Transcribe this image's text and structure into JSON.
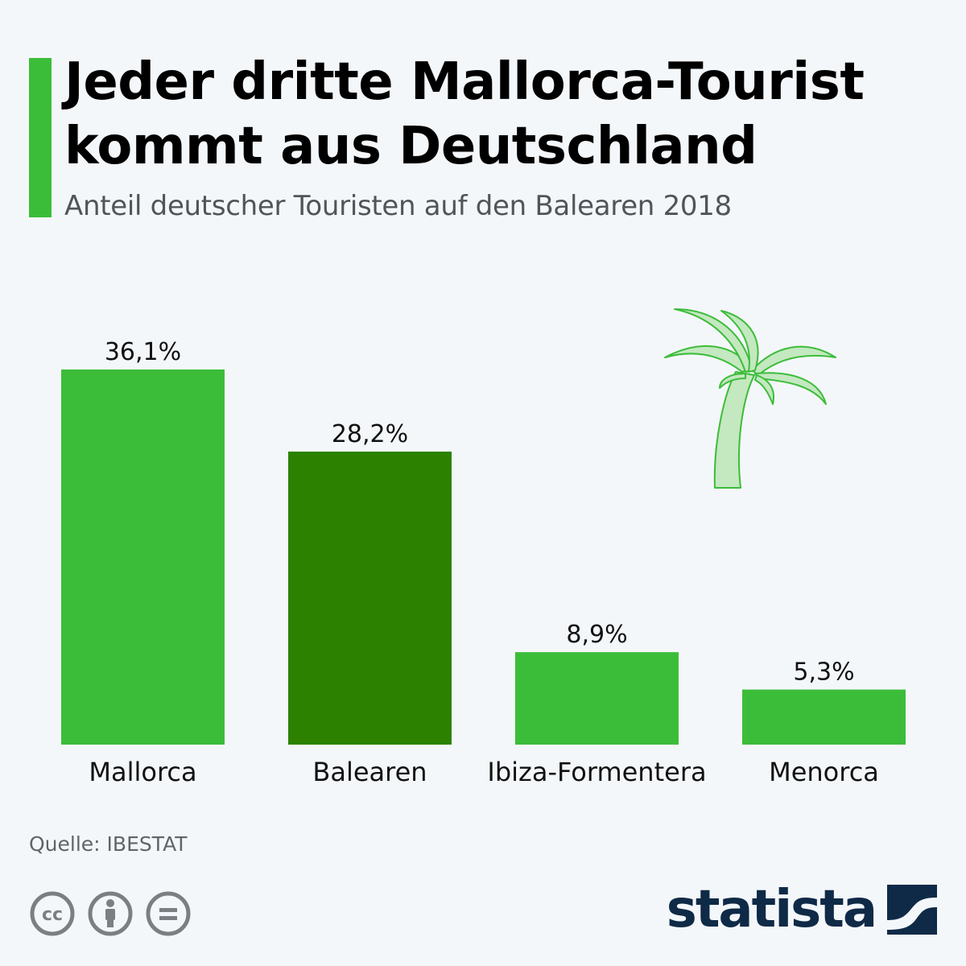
{
  "header": {
    "title": "Jeder dritte Mallorca-Tourist kommt aus Deutschland",
    "subtitle": "Anteil deutscher Touristen auf den Balearen 2018"
  },
  "chart_data": {
    "type": "bar",
    "title": "Jeder dritte Mallorca-Tourist kommt aus Deutschland",
    "subtitle": "Anteil deutscher Touristen auf den Balearen 2018",
    "categories": [
      "Mallorca",
      "Balearen",
      "Ibiza-Formentera",
      "Menorca"
    ],
    "values": [
      36.1,
      28.2,
      8.9,
      5.3
    ],
    "value_labels": [
      "36,1%",
      "28,2%",
      "8,9%",
      "5,3%"
    ],
    "unit": "%",
    "ylim": [
      0,
      36.1
    ],
    "grid": false,
    "legend": "none",
    "colors": [
      "#3cbd3a",
      "#2c8200",
      "#3cbd3a",
      "#3cbd3a"
    ]
  },
  "footer": {
    "source": "Quelle: IBESTAT",
    "logo_text": "statista",
    "license_icons": [
      "cc-icon",
      "attribution-icon",
      "no-derivatives-icon"
    ]
  },
  "colors": {
    "accent": "#3cbd3a",
    "highlight": "#2c8200",
    "background": "#f4f7fa",
    "brand": "#0e2a47"
  }
}
